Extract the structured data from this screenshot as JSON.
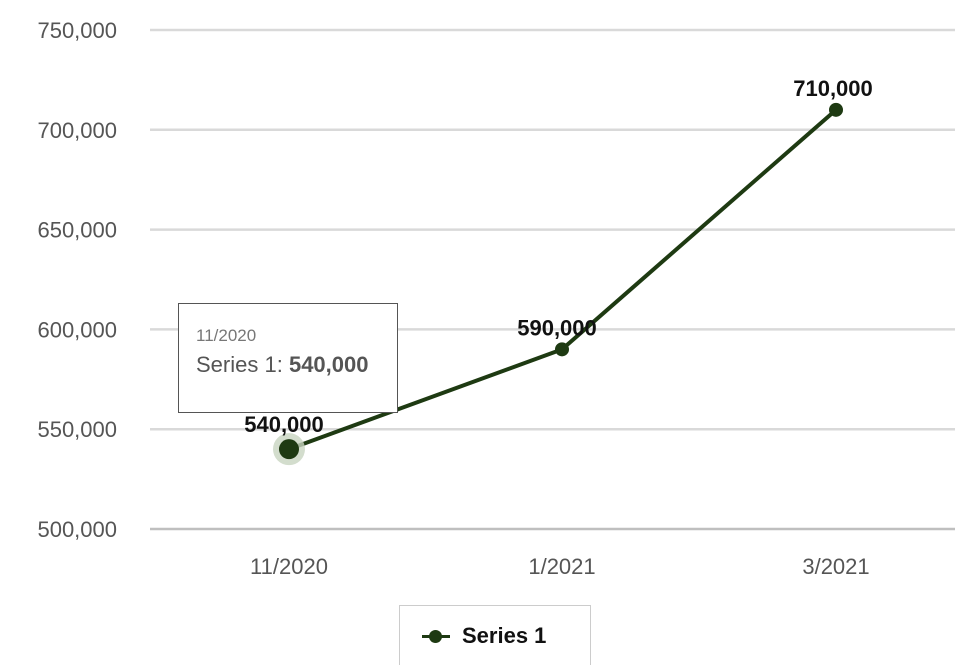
{
  "chart_data": {
    "type": "line",
    "categories": [
      "11/2020",
      "1/2021",
      "3/2021"
    ],
    "series": [
      {
        "name": "Series 1",
        "values": [
          540000,
          590000,
          710000
        ],
        "data_labels": [
          "540,000",
          "590,000",
          "710,000"
        ],
        "color": "#1e3a12"
      }
    ],
    "ylim": [
      500000,
      750000
    ],
    "yticks": [
      "500,000",
      "550,000",
      "600,000",
      "650,000",
      "700,000",
      "750,000"
    ],
    "grid": true,
    "legend_position": "bottom"
  },
  "tooltip": {
    "title": "11/2020",
    "series_label": "Series 1:",
    "value": "540,000"
  },
  "legend": {
    "label": "Series 1"
  },
  "colors": {
    "line": "#1e3a12",
    "grid": "#d9d9d9",
    "highlight": "#c8d5c0"
  }
}
